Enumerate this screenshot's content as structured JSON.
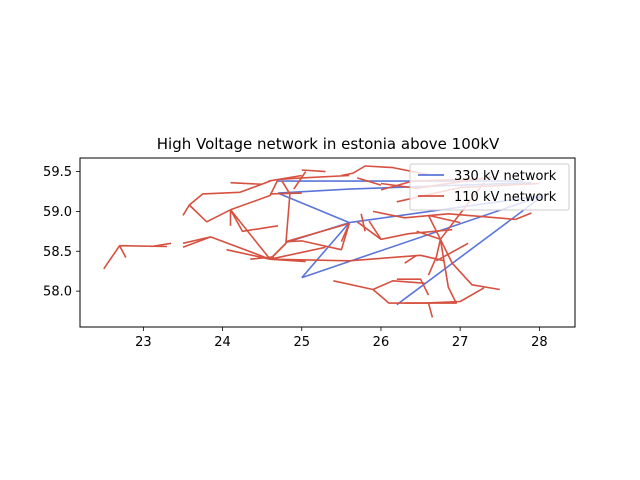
{
  "chart_data": {
    "type": "line",
    "title": "High Voltage network in estonia above 100kV",
    "xlabel": "",
    "ylabel": "",
    "xlim": [
      22.2,
      28.45
    ],
    "ylim": [
      57.55,
      59.67
    ],
    "xticks": [
      23,
      24,
      25,
      26,
      27,
      28
    ],
    "yticks": [
      58.0,
      58.5,
      59.0,
      59.5
    ],
    "xtick_labels": [
      "23",
      "24",
      "25",
      "26",
      "27",
      "28"
    ],
    "ytick_labels": [
      "58.0",
      "58.5",
      "59.0",
      "59.5"
    ],
    "grid": false,
    "legend_position": "upper right",
    "series": [
      {
        "name": "330 kV network",
        "color": "#5b76d8",
        "segments": [
          [
            [
              24.7,
              59.38
            ],
            [
              27.8,
              59.38
            ]
          ],
          [
            [
              24.7,
              59.23
            ],
            [
              25.6,
              59.28
            ],
            [
              27.9,
              59.36
            ]
          ],
          [
            [
              24.7,
              59.23
            ],
            [
              25.6,
              58.86
            ]
          ],
          [
            [
              25.6,
              58.86
            ],
            [
              28.05,
              59.2
            ]
          ],
          [
            [
              25.6,
              58.86
            ],
            [
              25.0,
              58.17
            ]
          ],
          [
            [
              24.8,
              58.61
            ],
            [
              25.6,
              58.86
            ]
          ],
          [
            [
              25.0,
              58.17
            ],
            [
              28.05,
              59.2
            ]
          ],
          [
            [
              28.05,
              59.2
            ],
            [
              26.2,
              57.83
            ]
          ]
        ]
      },
      {
        "name": "110 kV network",
        "color": "#d65140",
        "segments": [
          [
            [
              22.5,
              58.28
            ],
            [
              22.7,
              58.57
            ],
            [
              23.3,
              58.56
            ]
          ],
          [
            [
              22.7,
              58.57
            ],
            [
              22.78,
              58.42
            ]
          ],
          [
            [
              23.1,
              58.56
            ],
            [
              23.35,
              58.6
            ]
          ],
          [
            [
              23.5,
              58.6
            ],
            [
              23.85,
              58.68
            ]
          ],
          [
            [
              23.5,
              58.95
            ],
            [
              23.58,
              59.08
            ],
            [
              23.75,
              59.22
            ],
            [
              24.22,
              59.24
            ],
            [
              24.6,
              59.38
            ]
          ],
          [
            [
              23.58,
              59.08
            ],
            [
              23.8,
              58.87
            ],
            [
              24.1,
              59.02
            ]
          ],
          [
            [
              24.1,
              59.02
            ],
            [
              24.1,
              58.82
            ]
          ],
          [
            [
              24.1,
              59.02
            ],
            [
              24.6,
              59.2
            ],
            [
              24.7,
              59.4
            ]
          ],
          [
            [
              24.1,
              59.02
            ],
            [
              24.25,
              58.75
            ],
            [
              24.7,
              58.82
            ]
          ],
          [
            [
              24.1,
              59.02
            ],
            [
              24.6,
              58.4
            ]
          ],
          [
            [
              23.85,
              58.68
            ],
            [
              24.6,
              58.4
            ],
            [
              25.05,
              58.37
            ]
          ],
          [
            [
              23.85,
              58.68
            ],
            [
              23.5,
              58.55
            ]
          ],
          [
            [
              24.05,
              58.52
            ],
            [
              24.6,
              58.4
            ]
          ],
          [
            [
              24.35,
              58.4
            ],
            [
              24.65,
              58.43
            ]
          ],
          [
            [
              24.6,
              58.4
            ],
            [
              25.3,
              58.55
            ]
          ],
          [
            [
              24.6,
              58.4
            ],
            [
              25.6,
              58.38
            ],
            [
              26.5,
              58.45
            ],
            [
              26.8,
              58.38
            ]
          ],
          [
            [
              24.6,
              58.4
            ],
            [
              24.8,
              58.6
            ]
          ],
          [
            [
              24.6,
              58.4
            ],
            [
              24.8,
              58.6
            ],
            [
              24.85,
              59.22
            ],
            [
              24.75,
              59.38
            ]
          ],
          [
            [
              24.6,
              59.22
            ],
            [
              25.0,
              59.23
            ]
          ],
          [
            [
              24.1,
              59.36
            ],
            [
              24.5,
              59.34
            ]
          ],
          [
            [
              24.58,
              59.38
            ],
            [
              25.0,
              59.45
            ]
          ],
          [
            [
              24.7,
              59.4
            ],
            [
              25.0,
              59.42
            ],
            [
              25.6,
              59.45
            ]
          ],
          [
            [
              24.9,
              59.28
            ],
            [
              25.05,
              59.5
            ]
          ],
          [
            [
              25.0,
              59.52
            ],
            [
              25.3,
              59.5
            ]
          ],
          [
            [
              24.8,
              58.62
            ],
            [
              25.6,
              58.85
            ]
          ],
          [
            [
              24.8,
              58.62
            ],
            [
              25.0,
              58.63
            ],
            [
              25.5,
              58.52
            ],
            [
              25.6,
              58.85
            ]
          ],
          [
            [
              25.6,
              58.85
            ],
            [
              25.5,
              58.62
            ]
          ],
          [
            [
              25.75,
              58.97
            ],
            [
              25.8,
              58.75
            ]
          ],
          [
            [
              25.5,
              59.45
            ],
            [
              25.65,
              59.48
            ],
            [
              25.8,
              59.57
            ],
            [
              26.15,
              59.55
            ],
            [
              26.6,
              59.46
            ]
          ],
          [
            [
              26.0,
              59.27
            ],
            [
              26.4,
              59.38
            ],
            [
              27.3,
              59.41
            ]
          ],
          [
            [
              26.0,
              59.35
            ],
            [
              26.45,
              59.29
            ],
            [
              27.4,
              59.43
            ]
          ],
          [
            [
              25.7,
              59.42
            ],
            [
              26.0,
              59.33
            ]
          ],
          [
            [
              26.2,
              59.12
            ],
            [
              27.0,
              59.3
            ],
            [
              28.0,
              59.35
            ]
          ],
          [
            [
              25.9,
              59.0
            ],
            [
              26.3,
              58.92
            ],
            [
              26.85,
              58.97
            ],
            [
              27.7,
              58.9
            ]
          ],
          [
            [
              25.7,
              58.87
            ],
            [
              26.0,
              58.65
            ],
            [
              26.35,
              58.72
            ],
            [
              26.9,
              58.77
            ]
          ],
          [
            [
              26.0,
              58.65
            ],
            [
              25.85,
              58.88
            ]
          ],
          [
            [
              26.6,
              58.95
            ],
            [
              26.75,
              58.65
            ],
            [
              27.3,
              59.36
            ]
          ],
          [
            [
              26.6,
              58.95
            ],
            [
              27.0,
              58.86
            ]
          ],
          [
            [
              26.45,
              58.75
            ],
            [
              26.75,
              58.65
            ],
            [
              26.7,
              58.43
            ],
            [
              26.6,
              58.2
            ]
          ],
          [
            [
              26.3,
              58.35
            ],
            [
              26.45,
              58.45
            ]
          ],
          [
            [
              26.75,
              58.65
            ],
            [
              26.9,
              58.35
            ],
            [
              27.15,
              58.08
            ],
            [
              27.5,
              58.02
            ]
          ],
          [
            [
              26.75,
              58.65
            ],
            [
              26.85,
              58.05
            ],
            [
              26.95,
              57.85
            ],
            [
              26.55,
              57.85
            ],
            [
              26.3,
              57.85
            ]
          ],
          [
            [
              26.2,
              58.15
            ],
            [
              26.5,
              58.15
            ],
            [
              26.6,
              57.95
            ]
          ],
          [
            [
              26.6,
              57.85
            ],
            [
              26.65,
              57.67
            ]
          ],
          [
            [
              25.4,
              58.13
            ],
            [
              25.9,
              58.02
            ],
            [
              26.1,
              57.85
            ],
            [
              26.55,
              57.85
            ],
            [
              27.0,
              57.87
            ],
            [
              27.3,
              58.04
            ]
          ],
          [
            [
              25.9,
              58.02
            ],
            [
              26.15,
              58.13
            ],
            [
              26.55,
              58.1
            ]
          ],
          [
            [
              26.7,
              58.38
            ],
            [
              27.1,
              58.6
            ]
          ],
          [
            [
              27.7,
              58.9
            ],
            [
              27.9,
              58.98
            ]
          ]
        ]
      }
    ]
  }
}
